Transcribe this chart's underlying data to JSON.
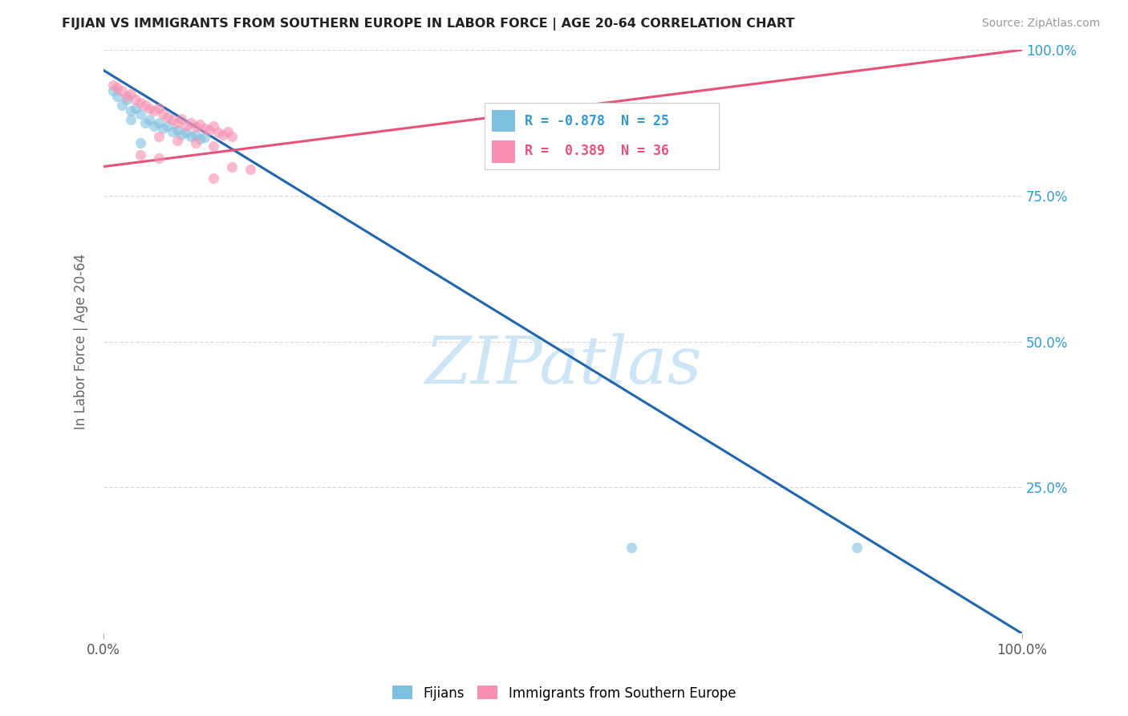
{
  "title": "FIJIAN VS IMMIGRANTS FROM SOUTHERN EUROPE IN LABOR FORCE | AGE 20-64 CORRELATION CHART",
  "source": "Source: ZipAtlas.com",
  "ylabel": "In Labor Force | Age 20-64",
  "xlim": [
    0.0,
    1.0
  ],
  "ylim": [
    0.0,
    1.0
  ],
  "ytick_labels": [
    "25.0%",
    "50.0%",
    "75.0%",
    "100.0%"
  ],
  "ytick_positions": [
    0.25,
    0.5,
    0.75,
    1.0
  ],
  "fijian_scatter": [
    [
      0.01,
      0.93
    ],
    [
      0.015,
      0.92
    ],
    [
      0.02,
      0.905
    ],
    [
      0.025,
      0.915
    ],
    [
      0.03,
      0.895
    ],
    [
      0.03,
      0.88
    ],
    [
      0.035,
      0.9
    ],
    [
      0.04,
      0.89
    ],
    [
      0.045,
      0.875
    ],
    [
      0.05,
      0.88
    ],
    [
      0.055,
      0.87
    ],
    [
      0.06,
      0.875
    ],
    [
      0.065,
      0.865
    ],
    [
      0.07,
      0.87
    ],
    [
      0.075,
      0.86
    ],
    [
      0.08,
      0.862
    ],
    [
      0.085,
      0.855
    ],
    [
      0.09,
      0.858
    ],
    [
      0.095,
      0.852
    ],
    [
      0.1,
      0.855
    ],
    [
      0.105,
      0.848
    ],
    [
      0.11,
      0.85
    ],
    [
      0.04,
      0.84
    ],
    [
      0.575,
      0.148
    ],
    [
      0.82,
      0.148
    ]
  ],
  "southern_europe_scatter": [
    [
      0.01,
      0.94
    ],
    [
      0.015,
      0.935
    ],
    [
      0.02,
      0.93
    ],
    [
      0.025,
      0.92
    ],
    [
      0.03,
      0.925
    ],
    [
      0.035,
      0.915
    ],
    [
      0.04,
      0.91
    ],
    [
      0.045,
      0.905
    ],
    [
      0.05,
      0.9
    ],
    [
      0.055,
      0.895
    ],
    [
      0.06,
      0.9
    ],
    [
      0.065,
      0.89
    ],
    [
      0.07,
      0.885
    ],
    [
      0.075,
      0.88
    ],
    [
      0.08,
      0.875
    ],
    [
      0.085,
      0.882
    ],
    [
      0.09,
      0.87
    ],
    [
      0.095,
      0.875
    ],
    [
      0.1,
      0.868
    ],
    [
      0.105,
      0.872
    ],
    [
      0.11,
      0.865
    ],
    [
      0.115,
      0.862
    ],
    [
      0.12,
      0.87
    ],
    [
      0.125,
      0.858
    ],
    [
      0.13,
      0.855
    ],
    [
      0.135,
      0.86
    ],
    [
      0.14,
      0.852
    ],
    [
      0.06,
      0.852
    ],
    [
      0.08,
      0.845
    ],
    [
      0.1,
      0.84
    ],
    [
      0.12,
      0.835
    ],
    [
      0.04,
      0.82
    ],
    [
      0.06,
      0.815
    ],
    [
      0.14,
      0.8
    ],
    [
      0.16,
      0.795
    ],
    [
      0.12,
      0.78
    ]
  ],
  "fijian_color": "#7fbfdf",
  "southern_europe_color": "#f78fb0",
  "fijian_line_color": "#2166ac",
  "southern_europe_line_color": "#e8527a",
  "scatter_size": 90,
  "scatter_alpha": 0.6,
  "fijian_line_x0": 0.0,
  "fijian_line_y0": 0.965,
  "fijian_line_x1": 1.0,
  "fijian_line_y1": 0.0,
  "south_line_x0": 0.0,
  "south_line_y0": 0.8,
  "south_line_x1": 1.0,
  "south_line_y1": 1.0,
  "watermark": "ZIPatlas",
  "watermark_color": "#cde5f5",
  "grid_color": "#d8d8d8",
  "right_ytick_color": "#3399cc",
  "legend_fijian_text": "R = -0.878  N = 25",
  "legend_south_text": "R =  0.389  N = 36",
  "legend_text_color": "#3399cc"
}
